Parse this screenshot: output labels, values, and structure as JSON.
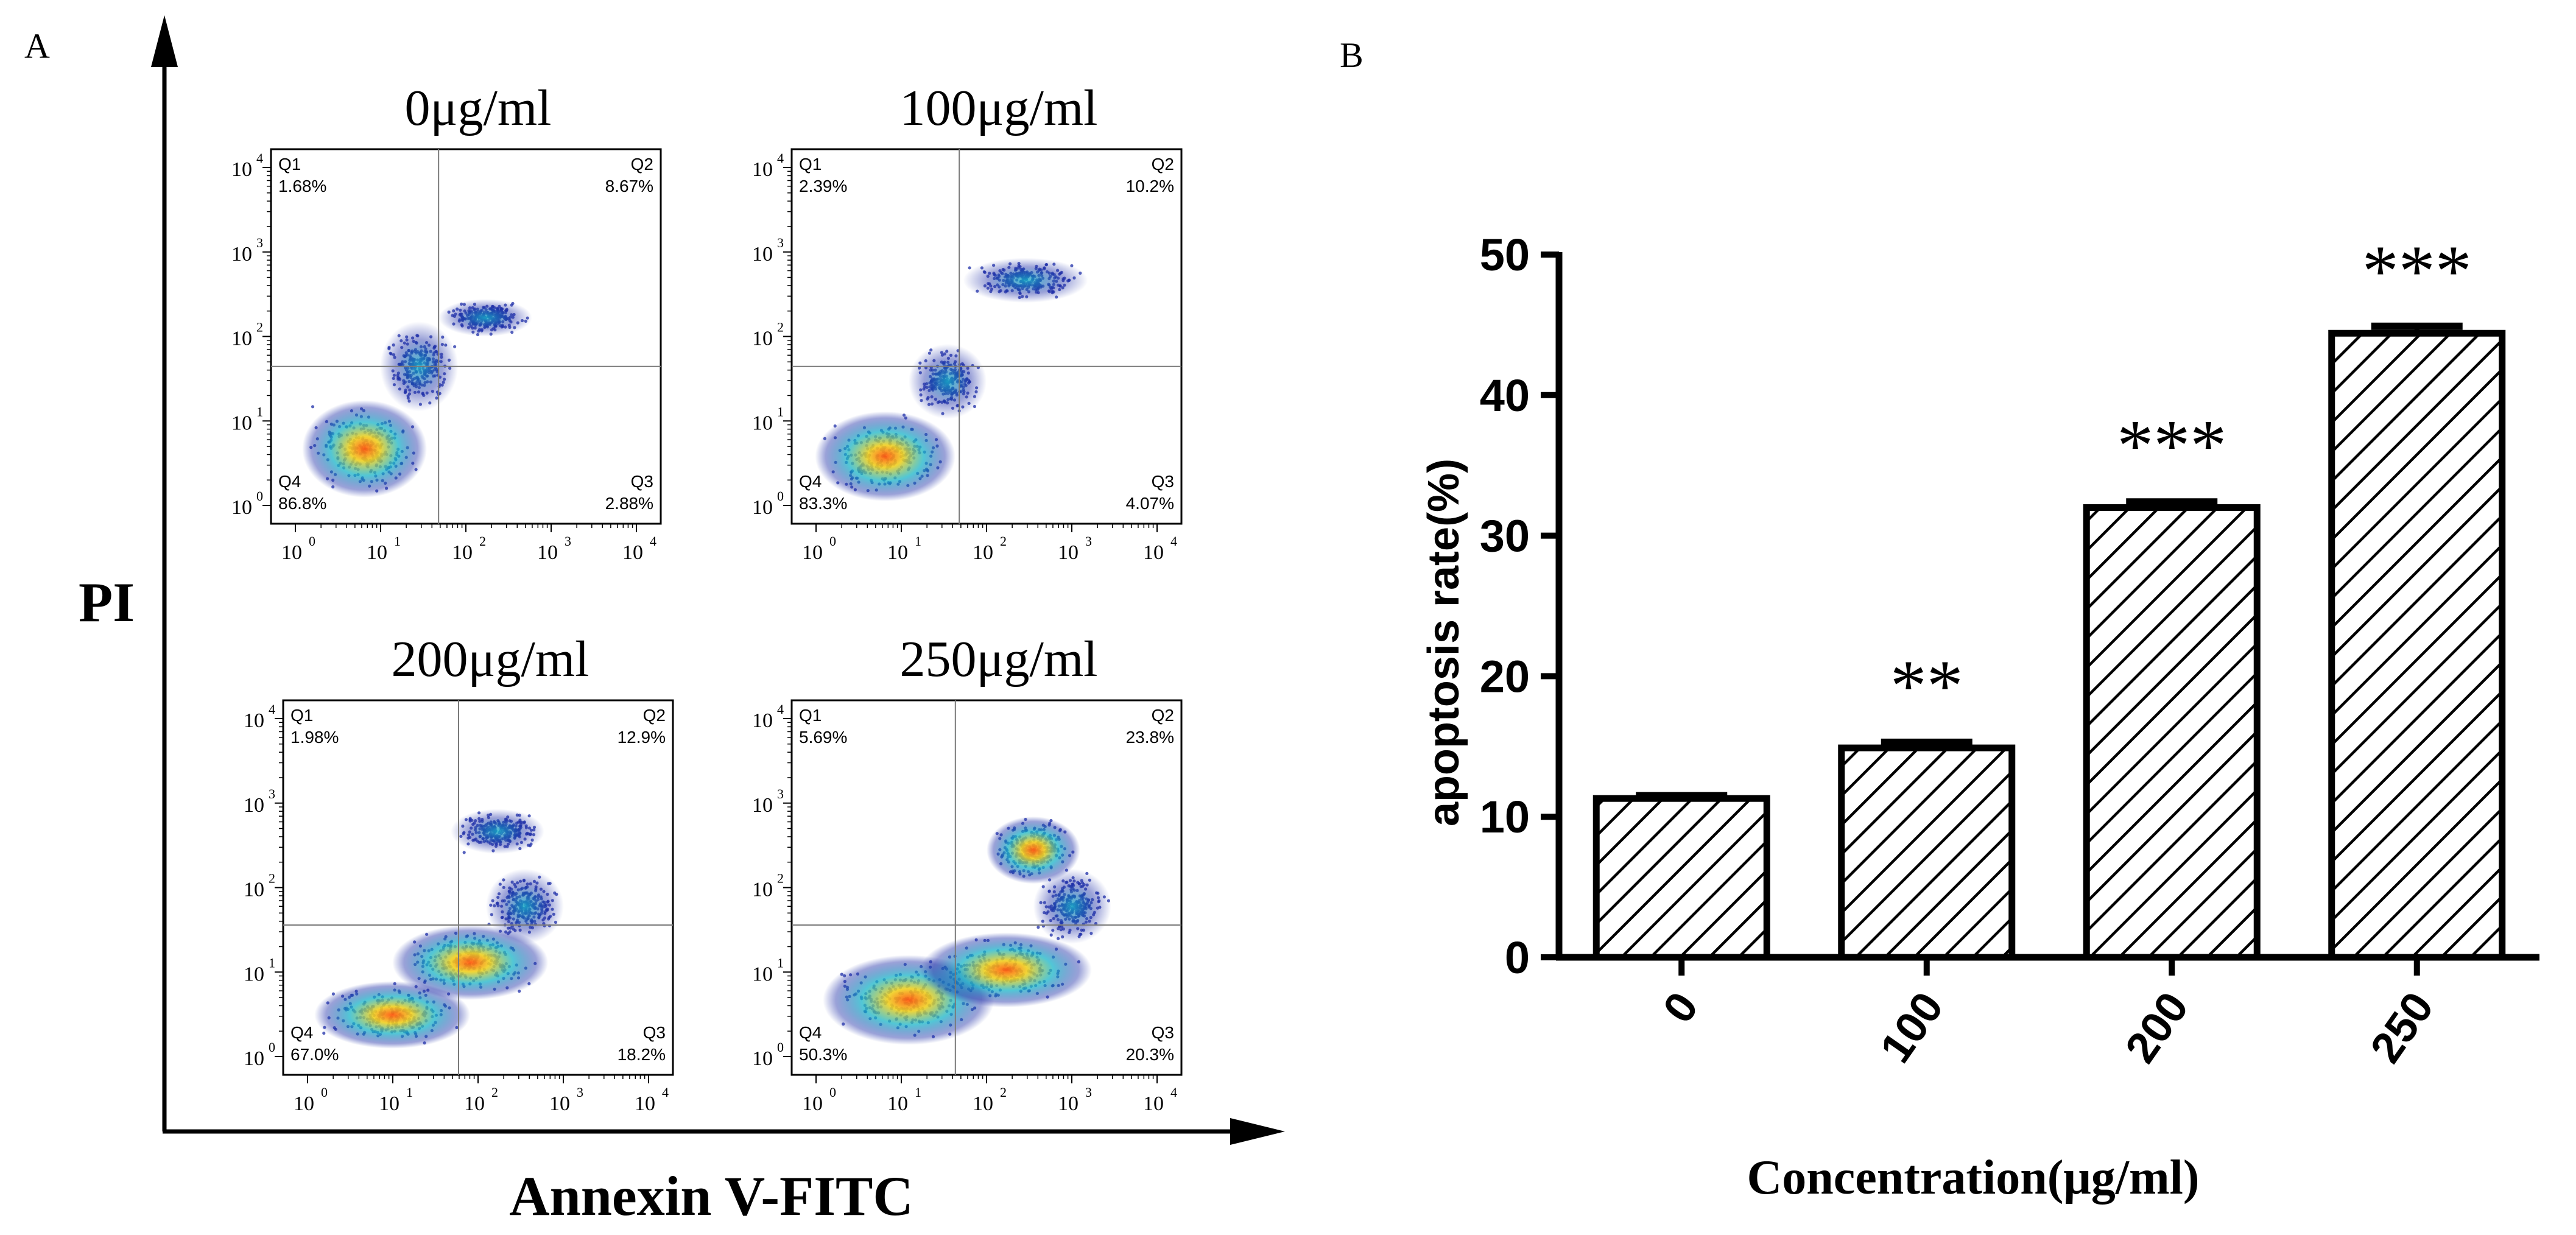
{
  "panel_a": {
    "label": "A",
    "y_axis_label": "PI",
    "x_axis_label": "Annexin V-FITC",
    "tick_labels": [
      "10",
      "10",
      "10",
      "10",
      "10"
    ],
    "tick_exponents": [
      "0",
      "1",
      "2",
      "3",
      "4"
    ],
    "plots": [
      {
        "title": "0μg/ml",
        "q1_label": "Q1",
        "q1": "1.68%",
        "q2_label": "Q2",
        "q2": "8.67%",
        "q3_label": "Q3",
        "q3": "2.88%",
        "q4_label": "Q4",
        "q4": "86.8%"
      },
      {
        "title": "100μg/ml",
        "q1_label": "Q1",
        "q1": "2.39%",
        "q2_label": "Q2",
        "q2": "10.2%",
        "q3_label": "Q3",
        "q3": "4.07%",
        "q4_label": "Q4",
        "q4": "83.3%"
      },
      {
        "title": "200μg/ml",
        "q1_label": "Q1",
        "q1": "1.98%",
        "q2_label": "Q2",
        "q2": "12.9%",
        "q3_label": "Q3",
        "q3": "18.2%",
        "q4_label": "Q4",
        "q4": "67.0%"
      },
      {
        "title": "250μg/ml",
        "q1_label": "Q1",
        "q1": "5.69%",
        "q2_label": "Q2",
        "q2": "23.8%",
        "q3_label": "Q3",
        "q3": "20.3%",
        "q4_label": "Q4",
        "q4": "50.3%"
      }
    ]
  },
  "chart_data": {
    "type": "bar",
    "panel_label": "B",
    "categories": [
      "0",
      "100",
      "200",
      "250"
    ],
    "values": [
      11.3,
      14.9,
      32.0,
      44.4
    ],
    "errors": [
      0.2,
      0.4,
      0.4,
      0.5
    ],
    "significance": [
      "",
      "**",
      "***",
      "***"
    ],
    "ylim": [
      0,
      50
    ],
    "yticks": [
      "0",
      "10",
      "20",
      "30",
      "40",
      "50"
    ],
    "ytick_values": [
      0,
      10,
      20,
      30,
      40,
      50
    ],
    "xlabel": "Concentration(μg/ml)",
    "ylabel": "apoptosis rate(%)",
    "fill": "diagonal hatch",
    "colors": {
      "ink": "#000000",
      "bar_fill": "#ffffff"
    }
  },
  "colors": {
    "background": "#ffffff",
    "ink": "#000000",
    "density_low": "#1f2fa8",
    "density_mid": "#18b4c8",
    "density_high": "#f0d020",
    "density_peak": "#ff5a10",
    "gate_line": "#7a7a7a"
  }
}
